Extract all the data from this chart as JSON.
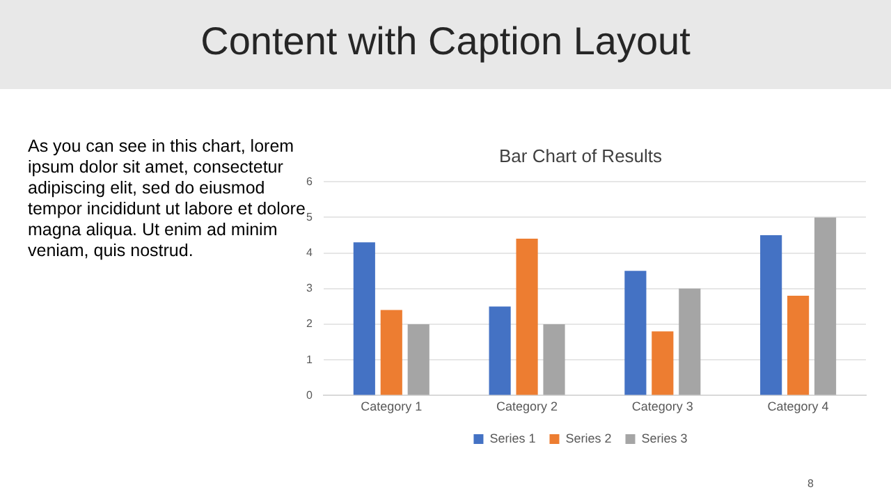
{
  "chart_data": {
    "type": "bar",
    "title": "Bar Chart of Results",
    "annotations": [
      "Content with Caption Layout",
      "As you can see in this chart, lorem ipsum dolor sit amet, consectetur adipiscing elit, sed do eiusmod tempor incididunt ut labore et dolore magna aliqua. Ut enim ad minim veniam, quis nostrud.",
      "8"
    ],
    "categories": [
      "Category 1",
      "Category 2",
      "Category 3",
      "Category 4"
    ],
    "series": [
      {
        "name": "Series 1",
        "color": "#4472c4",
        "values": [
          4.3,
          2.5,
          3.5,
          4.5
        ]
      },
      {
        "name": "Series 2",
        "color": "#ed7d31",
        "values": [
          2.4,
          4.4,
          1.8,
          2.8
        ]
      },
      {
        "name": "Series 3",
        "color": "#a5a5a5",
        "values": [
          2,
          2,
          3,
          5
        ]
      }
    ],
    "ylim": [
      0,
      6
    ],
    "yticks": [
      0,
      1,
      2,
      3,
      4,
      5,
      6
    ],
    "grid": "y",
    "legend": "bottom"
  }
}
